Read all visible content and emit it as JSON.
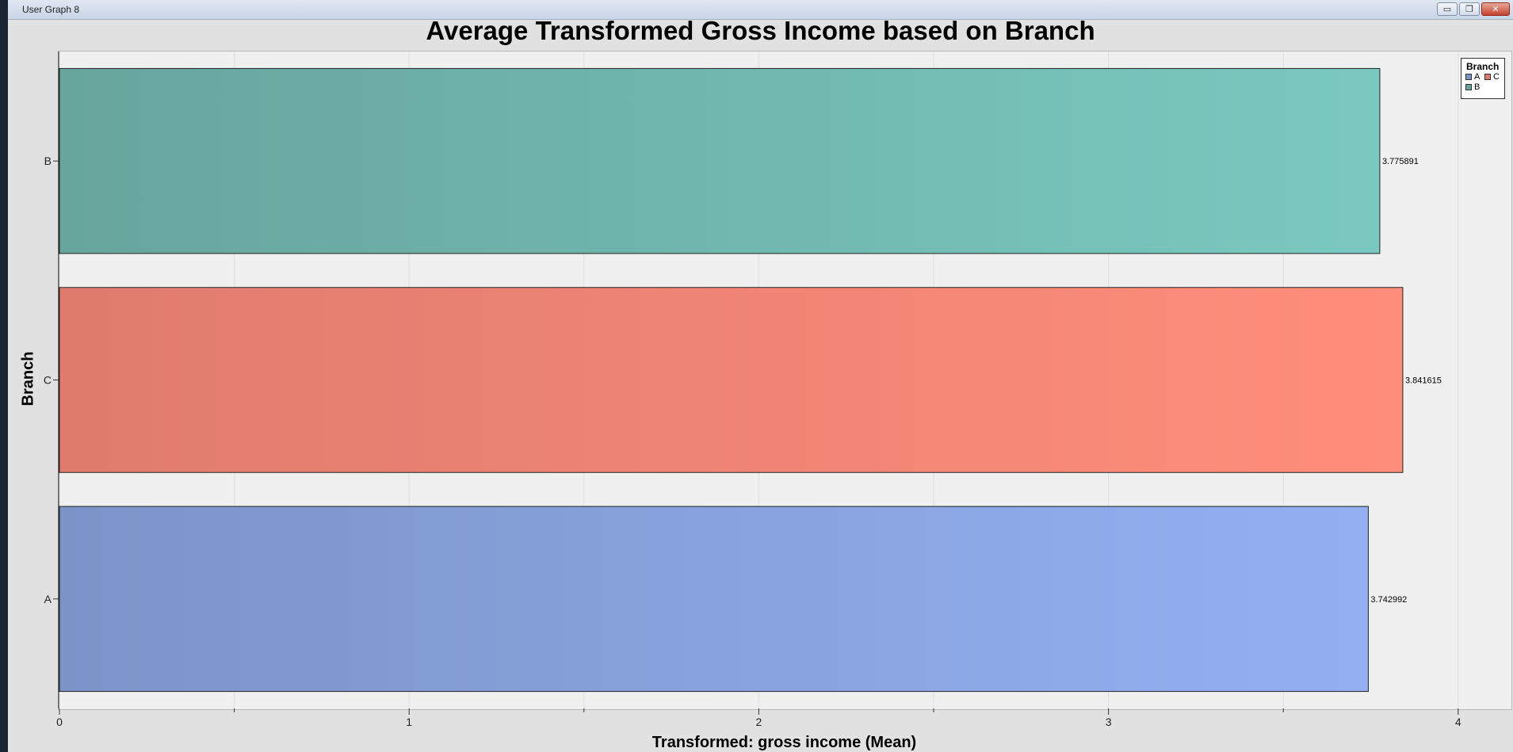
{
  "window": {
    "title": "User Graph 8",
    "minimize_glyph": "▭",
    "restore_glyph": "❐",
    "close_glyph": "✕"
  },
  "chart_data": {
    "type": "bar",
    "orientation": "horizontal",
    "title": "Average Transformed Gross Income based on Branch",
    "xlabel": "Transformed: gross income (Mean)",
    "ylabel": "Branch",
    "categories": [
      "B",
      "C",
      "A"
    ],
    "values": [
      3.775891,
      3.841615,
      3.742992
    ],
    "value_labels": [
      "3.775891",
      "3.841615",
      "3.742992"
    ],
    "xlim": [
      0,
      4.15
    ],
    "x_ticks": [
      0,
      1,
      2,
      3,
      4
    ],
    "x_tick_labels": [
      "0",
      "1",
      "2",
      "3",
      "4"
    ],
    "grid": true,
    "colors": {
      "B": [
        "#67a59d",
        "#7ac9c0"
      ],
      "C": [
        "#df7c6e",
        "#ff8d7b"
      ],
      "A": [
        "#7b94c8",
        "#94b0f2"
      ]
    },
    "legend": {
      "title": "Branch",
      "position": "top-right",
      "entries": [
        {
          "label": "A",
          "color": "#7b94c8"
        },
        {
          "label": "C",
          "color": "#df7c6e"
        },
        {
          "label": "B",
          "color": "#67a59d"
        }
      ]
    }
  }
}
